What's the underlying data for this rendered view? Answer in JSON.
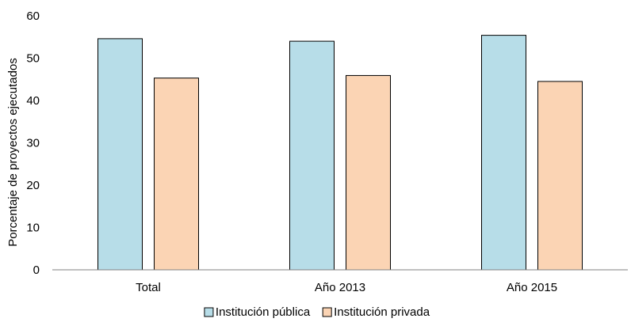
{
  "chart_data": {
    "type": "bar",
    "categories": [
      "Total",
      "Año 2013",
      "Año 2015"
    ],
    "series": [
      {
        "name": "Institución pública",
        "values": [
          54.6,
          54.0,
          55.4
        ],
        "color": "#b7dde8"
      },
      {
        "name": "Institución privada",
        "values": [
          45.3,
          45.9,
          44.5
        ],
        "color": "#fbd4b4"
      }
    ],
    "title": "",
    "xlabel": "",
    "ylabel": "Porcentaje de proyectos ejecutados",
    "ylim": [
      0,
      60
    ],
    "yticks": [
      0,
      10,
      20,
      30,
      40,
      50,
      60
    ],
    "grid": false,
    "legend": "bottom-center",
    "bar_outline_color": "#000000",
    "axis_color": "#808080"
  }
}
